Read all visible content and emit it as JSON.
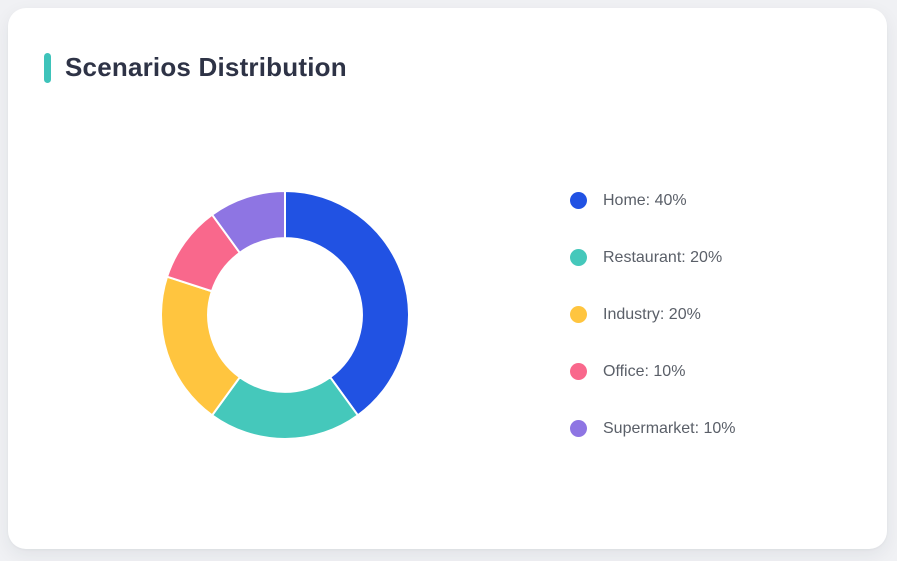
{
  "page": {
    "background_color": "#F0F1F4"
  },
  "card": {
    "title": "Scenarios Distribution",
    "accent_color": "#3EC3BA",
    "background_color": "#FFFFFF"
  },
  "chart_data": {
    "type": "pie",
    "subtype": "donut",
    "title": "Scenarios Distribution",
    "categories": [
      "Home",
      "Restaurant",
      "Industry",
      "Office",
      "Supermarket"
    ],
    "values": [
      40,
      20,
      20,
      10,
      10
    ],
    "unit": "%",
    "colors": [
      "#2152E3",
      "#45C8BB",
      "#FFC53F",
      "#F9688C",
      "#8E75E3"
    ],
    "legend_labels": [
      "Home: 40%",
      "Restaurant: 20%",
      "Industry: 20%",
      "Office: 10%",
      "Supermarket: 10%"
    ],
    "legend_position": "right",
    "start_angle_deg": 0,
    "clockwise": true,
    "inner_radius_ratio": 0.62,
    "slice_gap_color": "#FFFFFF"
  }
}
